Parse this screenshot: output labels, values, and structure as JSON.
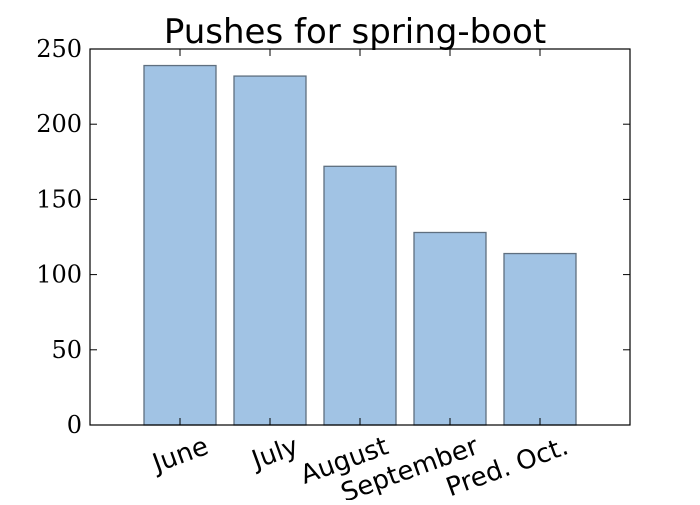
{
  "chart_data": {
    "type": "bar",
    "title": "Pushes for spring-boot",
    "xlabel": "",
    "ylabel": "",
    "categories": [
      "June",
      "July",
      "August",
      "September",
      "Pred. Oct."
    ],
    "values": [
      239,
      232,
      172,
      128,
      114
    ],
    "ylim": [
      0,
      250
    ],
    "yticks": [
      "0",
      "50",
      "100",
      "150",
      "200",
      "250"
    ],
    "grid": false,
    "legend": "none",
    "colors": {
      "bar_fill": "#a1c3e4",
      "bar_edge": "#5f6f7f",
      "axis": "#000000"
    }
  }
}
